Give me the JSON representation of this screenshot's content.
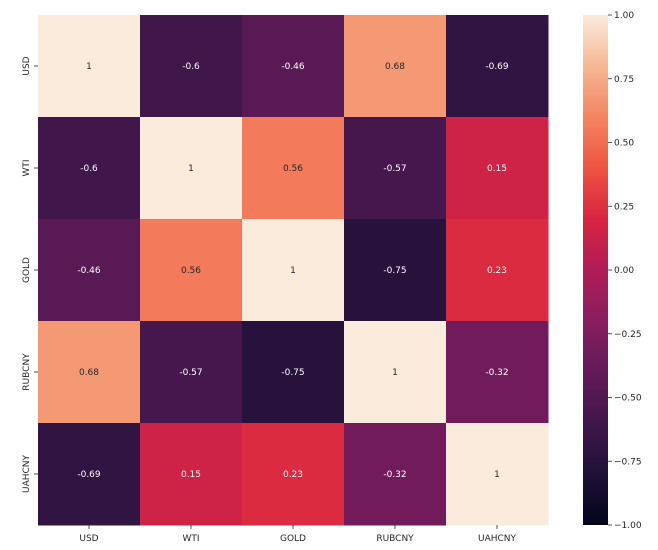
{
  "chart_data": {
    "type": "heatmap",
    "x_labels": [
      "USD",
      "WTI",
      "GOLD",
      "RUBCNY",
      "UAHCNY"
    ],
    "y_labels": [
      "USD",
      "WTI",
      "GOLD",
      "RUBCNY",
      "UAHCNY"
    ],
    "values": [
      [
        1,
        -0.6,
        -0.46,
        0.68,
        -0.69
      ],
      [
        -0.6,
        1,
        0.56,
        -0.57,
        0.15
      ],
      [
        -0.46,
        0.56,
        1,
        -0.75,
        0.23
      ],
      [
        0.68,
        -0.57,
        -0.75,
        1,
        -0.32
      ],
      [
        -0.69,
        0.15,
        0.23,
        -0.32,
        1
      ]
    ],
    "annotations": [
      [
        "1",
        "-0.6",
        "-0.46",
        "0.68",
        "-0.69"
      ],
      [
        "-0.6",
        "1",
        "0.56",
        "-0.57",
        "0.15"
      ],
      [
        "-0.46",
        "0.56",
        "1",
        "-0.75",
        "0.23"
      ],
      [
        "0.68",
        "-0.57",
        "-0.75",
        "1",
        "-0.32"
      ],
      [
        "-0.69",
        "0.15",
        "0.23",
        "-0.32",
        "1"
      ]
    ],
    "colormap": "rocket",
    "vmin": -1,
    "vmax": 1,
    "colorbar": {
      "ticks": [
        1.0,
        0.75,
        0.5,
        0.25,
        0.0,
        -0.25,
        -0.5,
        -0.75,
        -1.0
      ],
      "tick_labels": [
        "1.00",
        "0.75",
        "0.50",
        "0.25",
        "0.00",
        "−0.25",
        "−0.50",
        "−0.75",
        "−1.00"
      ]
    },
    "grid": false,
    "legend": "colorbar-right"
  }
}
